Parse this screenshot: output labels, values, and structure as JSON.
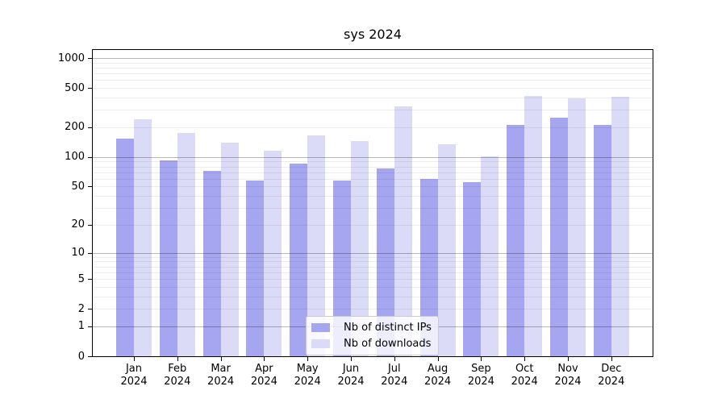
{
  "chart_data": {
    "type": "bar",
    "title": "sys 2024",
    "categories": [
      {
        "month": "Jan",
        "year": "2024"
      },
      {
        "month": "Feb",
        "year": "2024"
      },
      {
        "month": "Mar",
        "year": "2024"
      },
      {
        "month": "Apr",
        "year": "2024"
      },
      {
        "month": "May",
        "year": "2024"
      },
      {
        "month": "Jun",
        "year": "2024"
      },
      {
        "month": "Jul",
        "year": "2024"
      },
      {
        "month": "Aug",
        "year": "2024"
      },
      {
        "month": "Sep",
        "year": "2024"
      },
      {
        "month": "Oct",
        "year": "2024"
      },
      {
        "month": "Nov",
        "year": "2024"
      },
      {
        "month": "Dec",
        "year": "2024"
      }
    ],
    "series": [
      {
        "name": "Nb of distinct IPs",
        "color": "#a5a5f0",
        "values": [
          155,
          92,
          73,
          58,
          86,
          58,
          76,
          60,
          55,
          211,
          249,
          212
        ]
      },
      {
        "name": "Nb of downloads",
        "color": "#dbdbf8",
        "values": [
          241,
          176,
          140,
          115,
          166,
          145,
          323,
          134,
          101,
          415,
          395,
          405
        ]
      }
    ],
    "yscale": "log10(1+y)",
    "yticks": [
      0,
      1,
      2,
      5,
      10,
      20,
      50,
      100,
      200,
      500,
      1000
    ],
    "ylim": [
      0,
      1250
    ],
    "xlabel": "",
    "ylabel": "",
    "grid": "horizontal major and minor gridlines",
    "legend_position": "lower center"
  }
}
